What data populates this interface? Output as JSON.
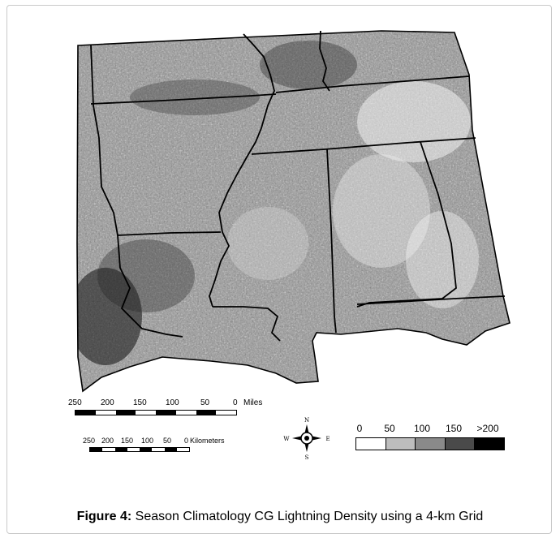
{
  "map": {
    "caption": {
      "label": "Figure 4:",
      "text": " Season Climatology CG Lightning Density using a 4-km Grid"
    },
    "scale_miles": {
      "ticks": [
        "250",
        "200",
        "150",
        "100",
        "50",
        "0"
      ],
      "unit": "Miles"
    },
    "scale_km": {
      "ticks": [
        "250",
        "200",
        "150",
        "100",
        "50",
        "0"
      ],
      "unit": "Kilometers"
    },
    "compass": {
      "n": "N",
      "s": "S",
      "e": "E",
      "w": "W"
    },
    "legend": {
      "labels": [
        "0",
        "50",
        "100",
        "150",
        ">200"
      ],
      "colors": [
        "#ffffff",
        "#bdbdbd",
        "#8a8a8a",
        "#4a4a4a",
        "#000000"
      ]
    },
    "density_shading": {
      "colors": [
        "#e6e6e6",
        "#c6c6c6",
        "#9c9c9c",
        "#6e6e6e",
        "#3c3c3c",
        "#111111"
      ]
    }
  }
}
